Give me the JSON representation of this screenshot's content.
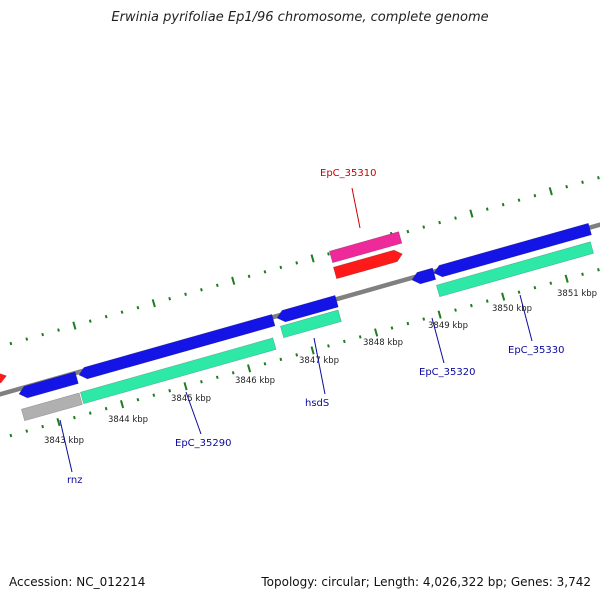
{
  "header": {
    "title": "Erwinia pyrifoliae Ep1/96 chromosome, complete genome"
  },
  "footer": {
    "accession": "Accession: NC_012214",
    "summary": "Topology: circular; Length: 4,026,322 bp; Genes: 3,742"
  },
  "colors": {
    "backbone": "#808080",
    "tick": "#1e7d1e",
    "forward_gene": "#1414e6",
    "reverse_gene": "#2ee8a8",
    "highlight_gene": "#ee2a9a",
    "rna_gene": "#ff1a1a",
    "pseudo_gene": "#b0b0b0",
    "label_red": "#cc0000",
    "label_blue": "#0a0a9e"
  },
  "ticks": {
    "unit": "kbp",
    "labels": [
      "3843 kbp",
      "3844 kbp",
      "3845 kbp",
      "3846 kbp",
      "3847 kbp",
      "3848 kbp",
      "3849 kbp",
      "3850 kbp",
      "3851 kbp"
    ]
  },
  "gene_labels": [
    "EpC_35310",
    "rnz",
    "EpC_35290",
    "hsdS",
    "EpC_35320",
    "EpC_35330"
  ]
}
